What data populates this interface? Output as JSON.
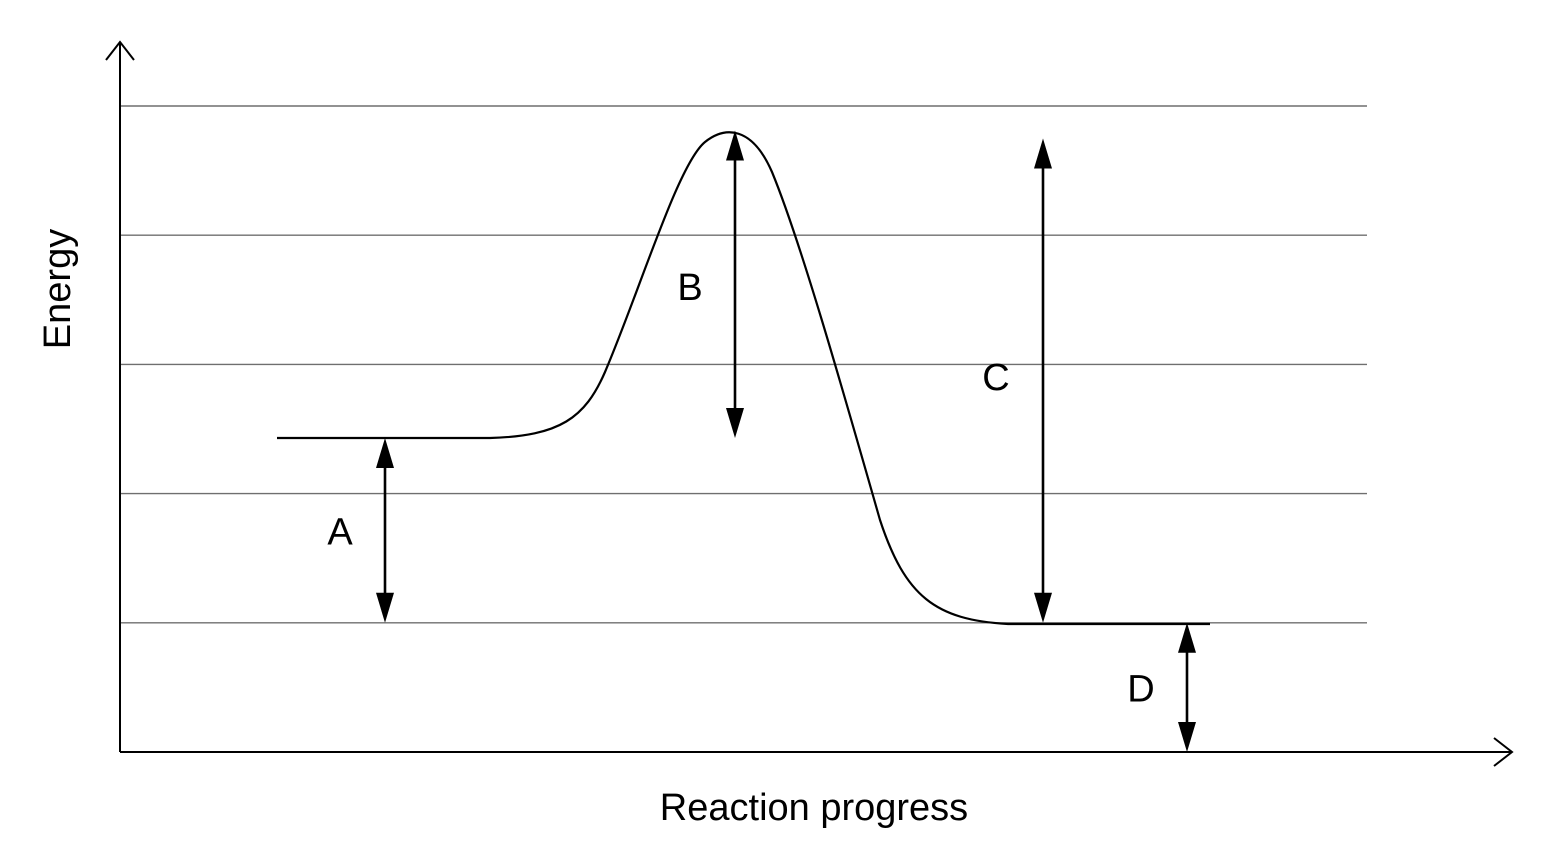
{
  "diagram": {
    "type": "energy-profile",
    "axes": {
      "x_label": "Reaction progress",
      "y_label": "Energy"
    },
    "grid": true,
    "energy_levels": {
      "baseline": 0,
      "products": 1,
      "reactants": 2.43,
      "transition_state": 4.81,
      "gridlines": [
        1,
        2,
        3,
        4,
        5
      ]
    },
    "arrows": [
      {
        "label": "A",
        "from": "products",
        "to": "reactants"
      },
      {
        "label": "B",
        "from": "transition_state",
        "to": "reactants"
      },
      {
        "label": "C",
        "from": "transition_state",
        "to": "products"
      },
      {
        "label": "D",
        "from": "baseline",
        "to": "products"
      }
    ],
    "colors": {
      "gridline": "#6f6f6f",
      "ink": "#000000",
      "background": "#ffffff"
    }
  }
}
